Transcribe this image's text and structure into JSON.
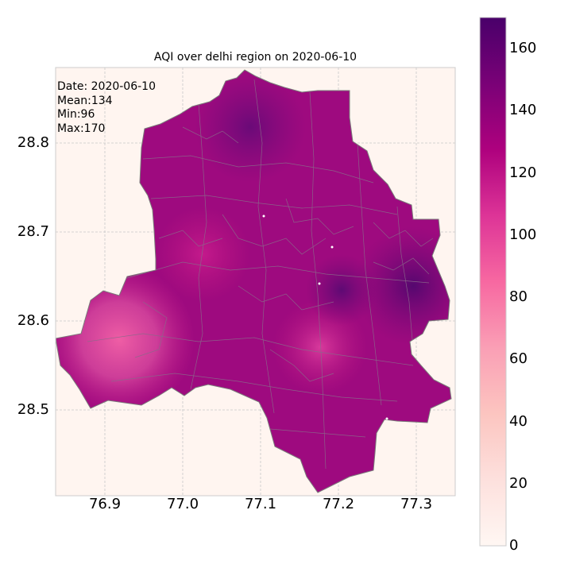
{
  "title": "AQI over delhi region on 2020-06-10",
  "stats": {
    "date": "Date: 2020-06-10",
    "mean": "Mean:134",
    "min": "Min:96",
    "max": "Max:170"
  },
  "map": {
    "x_ticks": [
      "76.9",
      "77.0",
      "77.1",
      "77.2",
      "77.3"
    ],
    "y_ticks": [
      "28.8",
      "28.7",
      "28.6",
      "28.5"
    ],
    "grid": true,
    "background_color": "#fff5f0",
    "boundary_color": "#7a7a7a",
    "hotspots": [
      {
        "area": "south-west",
        "aqi_level": "low (~100)"
      },
      {
        "area": "central-south",
        "aqi_level": "low (~105)"
      },
      {
        "area": "north",
        "aqi_level": "high (~155)"
      },
      {
        "area": "east",
        "aqi_level": "high (~165)"
      }
    ]
  },
  "colorbar": {
    "ticks": [
      "0",
      "20",
      "40",
      "60",
      "80",
      "100",
      "120",
      "140",
      "160"
    ],
    "range": [
      0,
      170
    ],
    "colormap": "RdPu",
    "colors": [
      "#fff7f3",
      "#fde0dd",
      "#fcc5c0",
      "#fa9fb5",
      "#f768a1",
      "#dd3497",
      "#ae017e",
      "#7a0177",
      "#49006a"
    ]
  }
}
